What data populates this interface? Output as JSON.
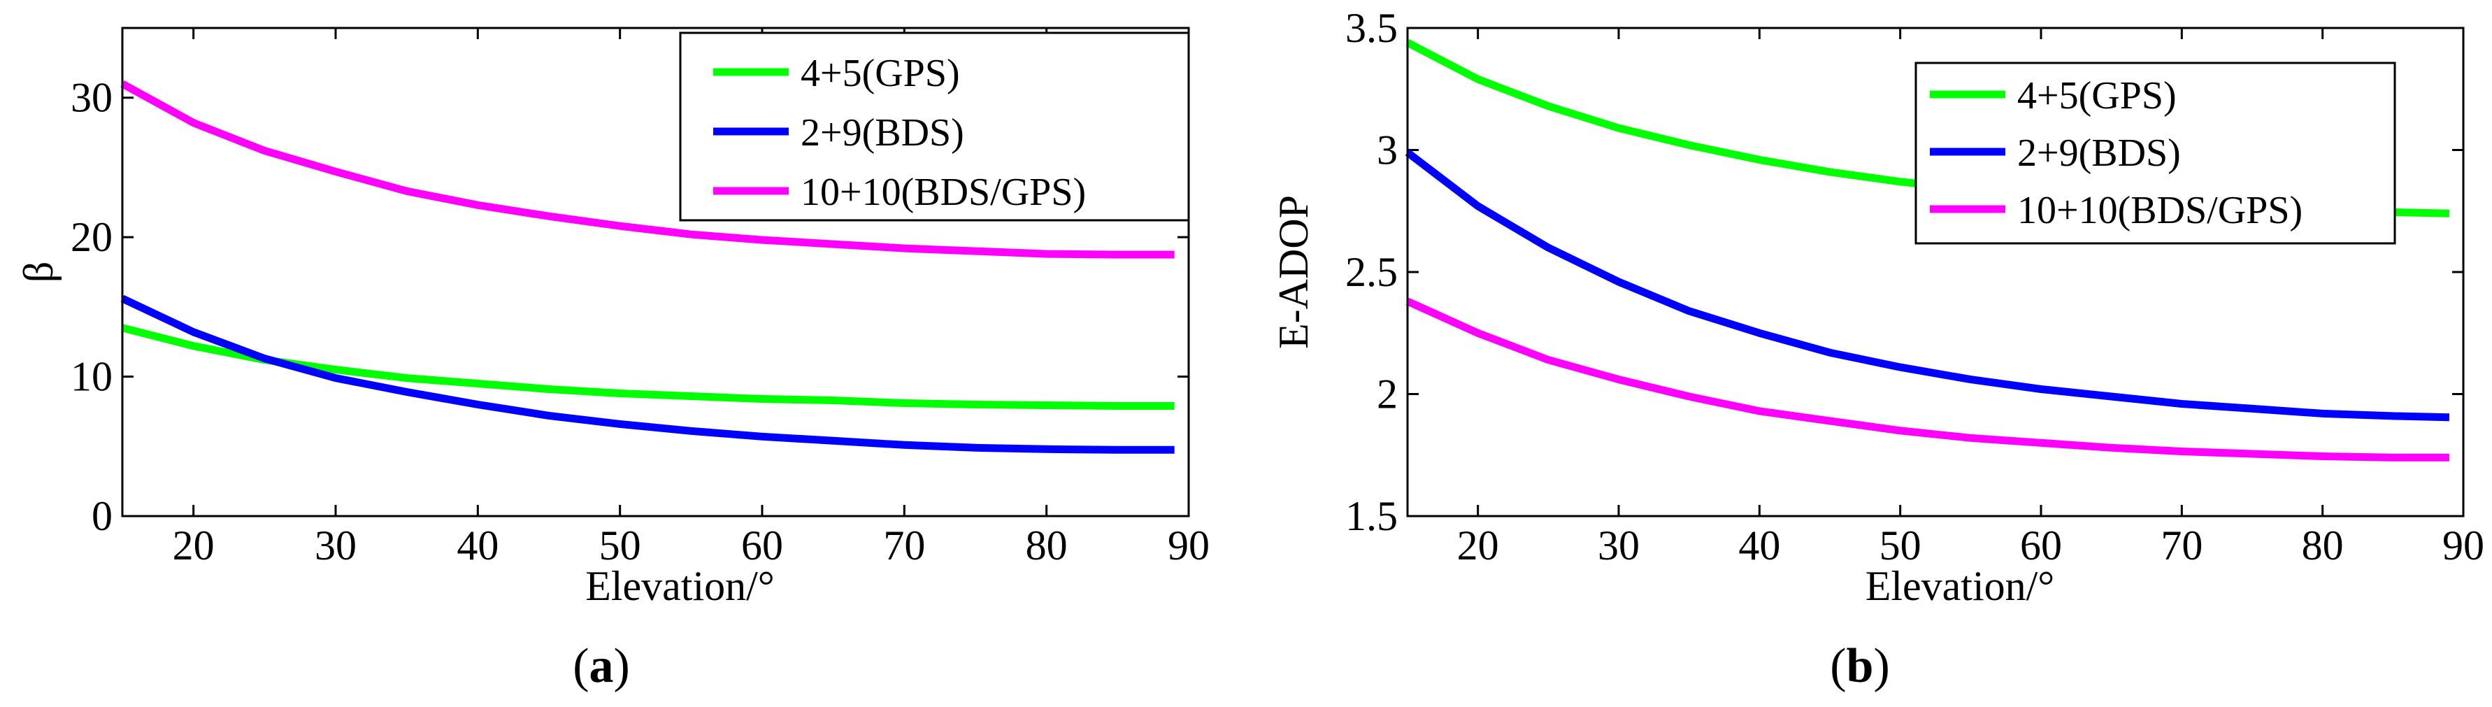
{
  "chart_data": [
    {
      "type": "line",
      "panel_label_open": "(",
      "panel_label_letter": "a",
      "panel_label_close": ")",
      "title": "",
      "xlabel": "Elevation/°",
      "ylabel": "β",
      "xlim": [
        15,
        90
      ],
      "ylim": [
        0,
        35
      ],
      "xticks": [
        20,
        30,
        40,
        50,
        60,
        70,
        80,
        90
      ],
      "yticks": [
        0,
        10,
        20,
        30
      ],
      "x": [
        15,
        20,
        25,
        30,
        35,
        40,
        45,
        50,
        55,
        60,
        65,
        70,
        75,
        80,
        85,
        89
      ],
      "legend_position": "top-right",
      "series": [
        {
          "name": "4+5(GPS)",
          "color": "#00ff00",
          "values": [
            13.5,
            12.2,
            11.2,
            10.5,
            9.9,
            9.5,
            9.1,
            8.8,
            8.6,
            8.4,
            8.3,
            8.1,
            8.0,
            7.95,
            7.9,
            7.9
          ]
        },
        {
          "name": "2+9(BDS)",
          "color": "#0000ff",
          "values": [
            15.6,
            13.2,
            11.3,
            9.9,
            8.9,
            8.0,
            7.2,
            6.6,
            6.1,
            5.7,
            5.4,
            5.1,
            4.9,
            4.8,
            4.75,
            4.75
          ]
        },
        {
          "name": "10+10(BDS/GPS)",
          "color": "#ff00ff",
          "values": [
            31.0,
            28.2,
            26.2,
            24.7,
            23.3,
            22.3,
            21.5,
            20.8,
            20.2,
            19.8,
            19.5,
            19.2,
            19.0,
            18.8,
            18.75,
            18.75
          ]
        }
      ]
    },
    {
      "type": "line",
      "panel_label_open": "(",
      "panel_label_letter": "b",
      "panel_label_close": ")",
      "title": "",
      "xlabel": "Elevation/°",
      "ylabel": "E-ADOP",
      "xlim": [
        15,
        90
      ],
      "ylim": [
        1.5,
        3.5
      ],
      "xticks": [
        20,
        30,
        40,
        50,
        60,
        70,
        80,
        90
      ],
      "yticks": [
        1.5,
        2,
        2.5,
        3,
        3.5
      ],
      "ytick_labels": [
        "1.5",
        "2",
        "2.5",
        "3",
        "3.5"
      ],
      "x": [
        15,
        20,
        25,
        30,
        35,
        40,
        45,
        50,
        55,
        60,
        65,
        70,
        75,
        80,
        85,
        89
      ],
      "legend_position": "top-right",
      "series": [
        {
          "name": "4+5(GPS)",
          "color": "#00ff00",
          "values": [
            3.44,
            3.29,
            3.18,
            3.09,
            3.02,
            2.96,
            2.91,
            2.87,
            2.84,
            2.81,
            2.79,
            2.77,
            2.76,
            2.75,
            2.745,
            2.74
          ]
        },
        {
          "name": "2+9(BDS)",
          "color": "#0000ff",
          "values": [
            2.99,
            2.77,
            2.6,
            2.46,
            2.34,
            2.25,
            2.17,
            2.11,
            2.06,
            2.02,
            1.99,
            1.96,
            1.94,
            1.92,
            1.91,
            1.905
          ]
        },
        {
          "name": "10+10(BDS/GPS)",
          "color": "#ff00ff",
          "values": [
            2.38,
            2.25,
            2.14,
            2.06,
            1.99,
            1.93,
            1.89,
            1.85,
            1.82,
            1.8,
            1.78,
            1.765,
            1.755,
            1.745,
            1.74,
            1.74
          ]
        }
      ]
    }
  ]
}
